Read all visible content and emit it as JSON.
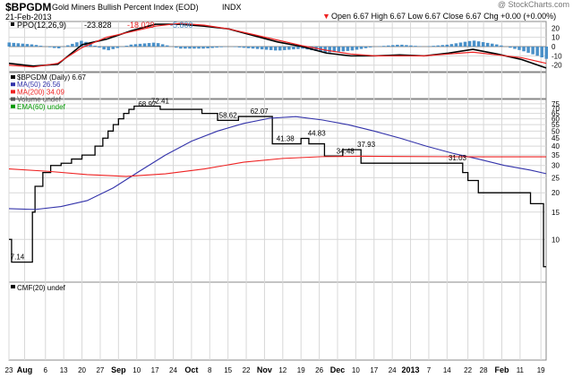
{
  "header": {
    "symbol": "$BPGDM",
    "name": "Gold Miners Bullish Percent Index (EOD)",
    "exchange": "INDX",
    "date": "21-Feb-2013",
    "watermark": "@ StockCharts.com",
    "ohlc": "Open 6.67  High 6.67  Low 6.67  Close 6.67  Chg +0.00 (+0.00%)",
    "ohlc_marker": "▼"
  },
  "colors": {
    "price": "#000000",
    "ma50": "#3333aa",
    "ma200": "#ee2222",
    "volume": "#555555",
    "ema60": "#009900",
    "hist": "#4a90c8",
    "grid": "#d8d8d8",
    "frame": "#888888"
  },
  "chart_data": [
    {
      "type": "line",
      "panel": "indicator",
      "label": "PPO(12,26,9)",
      "values_text": [
        "-23.828",
        "-18.029",
        "-5.800"
      ],
      "value_colors": [
        "#000000",
        "#ee2222",
        "#4a90c8"
      ],
      "ylim": [
        -27,
        27
      ],
      "yticks": [
        20,
        10,
        0,
        -10,
        -20
      ],
      "x": [
        0,
        10,
        20,
        30,
        40,
        50,
        60,
        70,
        80,
        90,
        100,
        110,
        120,
        130,
        140,
        150,
        160,
        170,
        180,
        190,
        200,
        210,
        220
      ],
      "series": [
        {
          "name": "PPO",
          "color": "#000000",
          "values": [
            -18,
            -21,
            -19,
            2,
            8,
            17,
            24,
            24,
            22,
            19,
            12,
            5,
            0,
            -7,
            -10,
            -10,
            -9,
            -10,
            -7,
            -3,
            -8,
            -14,
            -23
          ]
        },
        {
          "name": "Signal",
          "color": "#ee2222",
          "values": [
            -20,
            -22,
            -18,
            -1,
            10,
            16,
            22,
            25,
            23,
            19,
            13,
            7,
            1,
            -4,
            -8,
            -10,
            -10,
            -10,
            -8,
            -6,
            -9,
            -12,
            -18
          ]
        },
        {
          "name": "Histogram",
          "kind": "bar",
          "color": "#4a90c8",
          "values": [
            2,
            1,
            -1,
            3,
            -2,
            1,
            2,
            -1,
            -1,
            0,
            -1,
            -2,
            -1,
            -3,
            -2,
            0,
            1,
            0,
            1,
            3,
            1,
            -2,
            -6
          ]
        }
      ]
    },
    {
      "type": "line",
      "panel": "price",
      "title": "$BPGDM (Daily) 6.67",
      "legend": [
        "$BPGDM (Daily) 6.67",
        "MA(50) 26.56",
        "MA(200) 34.09",
        "Volume undef",
        "EMA(60) undef"
      ],
      "legend_colors": [
        "#000000",
        "#3333aa",
        "#ee2222",
        "#555555",
        "#009900"
      ],
      "ylim": [
        5.3,
        80
      ],
      "log": true,
      "yticks": [
        75,
        70,
        65,
        60,
        55,
        50,
        45,
        40,
        35,
        30,
        25,
        20,
        15,
        10
      ],
      "xlabels": [
        "23",
        "Aug",
        "6",
        "13",
        "20",
        "27",
        "Sep",
        "10",
        "17",
        "24",
        "Oct",
        "8",
        "15",
        "22",
        "Nov",
        "12",
        "19",
        "26",
        "Dec",
        "10",
        "17",
        "24",
        "2013",
        "7",
        "14",
        "22",
        "28",
        "Feb",
        "11",
        "19"
      ],
      "xlabel_days": [
        0,
        6,
        14,
        21,
        28,
        35,
        42,
        49,
        56,
        63,
        70,
        77,
        84,
        91,
        98,
        105,
        112,
        119,
        126,
        133,
        140,
        147,
        154,
        161,
        168,
        176,
        182,
        189,
        196,
        204
      ],
      "xlabel_bold": [
        "Aug",
        "Sep",
        "Oct",
        "Nov",
        "Dec",
        "2013",
        "Feb"
      ],
      "series": [
        {
          "name": "$BPGDM",
          "color": "#000000",
          "x": [
            0,
            1,
            1,
            9,
            9,
            10,
            10,
            13,
            13,
            16,
            16,
            20,
            20,
            24,
            24,
            28,
            28,
            33,
            33,
            36,
            36,
            38,
            38,
            40,
            40,
            42,
            42,
            44,
            44,
            46,
            46,
            48,
            48,
            51,
            51,
            58,
            58,
            65,
            65,
            74,
            74,
            80,
            80,
            88,
            88,
            96,
            96,
            101,
            101,
            112,
            112,
            115,
            115,
            117,
            117,
            121,
            121,
            128,
            128,
            135,
            135,
            139,
            139,
            143,
            143,
            147,
            147,
            174,
            174,
            176,
            176,
            180,
            180,
            190,
            190,
            200,
            200,
            205,
            205,
            206
          ],
          "values": [
            10,
            10,
            7.14,
            7.14,
            15,
            15,
            22,
            22,
            27,
            27,
            30,
            30,
            31,
            31,
            33,
            33,
            35,
            35,
            40,
            40,
            45,
            45,
            50,
            50,
            55,
            55,
            60,
            60,
            65,
            65,
            68.97,
            68.97,
            72.41,
            72.41,
            72.41,
            72.41,
            68.97,
            68.97,
            68.97,
            68.97,
            65,
            65,
            58.62,
            58.62,
            62.07,
            62.07,
            62.07,
            62.07,
            41.38,
            41.38,
            44.83,
            44.83,
            41.38,
            41.38,
            41.38,
            41.38,
            34.48,
            34.48,
            37.93,
            37.93,
            31.03,
            31.03,
            31.03,
            31.03,
            31.03,
            31.03,
            31.03,
            31.03,
            27,
            27,
            24,
            24,
            20,
            20,
            20,
            20,
            17,
            17,
            6.67,
            6.67
          ]
        },
        {
          "name": "MA(50)",
          "color": "#3333aa",
          "x": [
            0,
            10,
            20,
            30,
            40,
            50,
            60,
            70,
            80,
            90,
            100,
            110,
            120,
            130,
            140,
            150,
            160,
            170,
            180,
            190,
            200,
            206
          ],
          "values": [
            15.8,
            15.6,
            16.3,
            17.8,
            21.5,
            27.5,
            35,
            43,
            50,
            56,
            60.5,
            62,
            59,
            55,
            50,
            45,
            40,
            36,
            33,
            30,
            28,
            26.56
          ]
        },
        {
          "name": "MA(200)",
          "color": "#ee2222",
          "x": [
            0,
            15,
            30,
            45,
            60,
            75,
            90,
            105,
            120,
            135,
            150,
            165,
            180,
            195,
            206
          ],
          "values": [
            28.5,
            27.5,
            26.2,
            25.5,
            26.5,
            28.5,
            31.5,
            33.3,
            34.2,
            34.4,
            34.3,
            34.2,
            34.1,
            34.1,
            34.09
          ]
        }
      ],
      "data_labels": [
        {
          "text": "7.14",
          "day": 4,
          "value": 7.14
        },
        {
          "text": "72.41",
          "day": 58,
          "value": 72.41
        },
        {
          "text": "68.97",
          "day": 53,
          "value": 68.97
        },
        {
          "text": "62.07",
          "day": 96,
          "value": 62.07
        },
        {
          "text": "58.62",
          "day": 84,
          "value": 58.62
        },
        {
          "text": "44.83",
          "day": 118,
          "value": 44.83
        },
        {
          "text": "41.38",
          "day": 106,
          "value": 41.38
        },
        {
          "text": "37.93",
          "day": 137,
          "value": 37.93
        },
        {
          "text": "34.48",
          "day": 129,
          "value": 34.48
        },
        {
          "text": "31.03",
          "day": 172,
          "value": 31.03
        }
      ]
    },
    {
      "type": "line",
      "panel": "lower",
      "label": "CMF(20) undef",
      "series": []
    }
  ]
}
